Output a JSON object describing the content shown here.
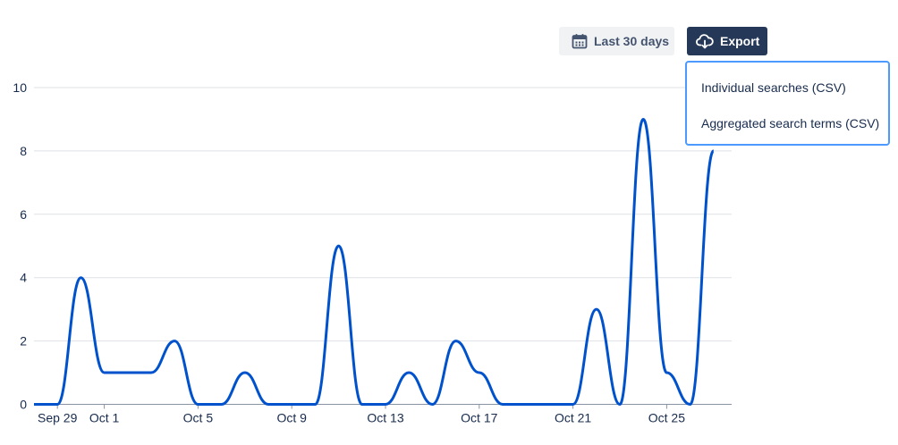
{
  "toolbar": {
    "date_range_label": "Last 30 days",
    "date_icon": "calendar-icon",
    "export_label": "Export",
    "export_icon": "cloud-download-icon"
  },
  "export_menu": {
    "items": [
      "Individual searches (CSV)",
      "Aggregated search terms (CSV)"
    ]
  },
  "colors": {
    "line": "#0052cc",
    "grid": "#dfe1e6",
    "export_button": "#253858",
    "date_button": "#f1f2f4",
    "menu_border": "#4c9aff"
  },
  "chart_data": {
    "type": "line",
    "x": [
      "Sep 28",
      "Sep 29",
      "Sep 30",
      "Oct 1",
      "Oct 2",
      "Oct 3",
      "Oct 4",
      "Oct 5",
      "Oct 6",
      "Oct 7",
      "Oct 8",
      "Oct 9",
      "Oct 10",
      "Oct 11",
      "Oct 12",
      "Oct 13",
      "Oct 14",
      "Oct 15",
      "Oct 16",
      "Oct 17",
      "Oct 18",
      "Oct 19",
      "Oct 20",
      "Oct 21",
      "Oct 22",
      "Oct 23",
      "Oct 24",
      "Oct 25",
      "Oct 26",
      "Oct 27"
    ],
    "series": [
      {
        "values": [
          0,
          0,
          4,
          1,
          1,
          1,
          2,
          0,
          0,
          1,
          0,
          0,
          0,
          5,
          0,
          0,
          1,
          0,
          2,
          1,
          0,
          0,
          0,
          0,
          3,
          0,
          9,
          1,
          0,
          8
        ]
      }
    ],
    "x_tick_labels": [
      "Sep 29",
      "Oct 1",
      "Oct 5",
      "Oct 9",
      "Oct 13",
      "Oct 17",
      "Oct 21",
      "Oct 25"
    ],
    "y_ticks": [
      0,
      2,
      4,
      6,
      8,
      10
    ],
    "ylim": [
      0,
      10
    ],
    "grid": true,
    "title": "",
    "xlabel": "",
    "ylabel": ""
  }
}
